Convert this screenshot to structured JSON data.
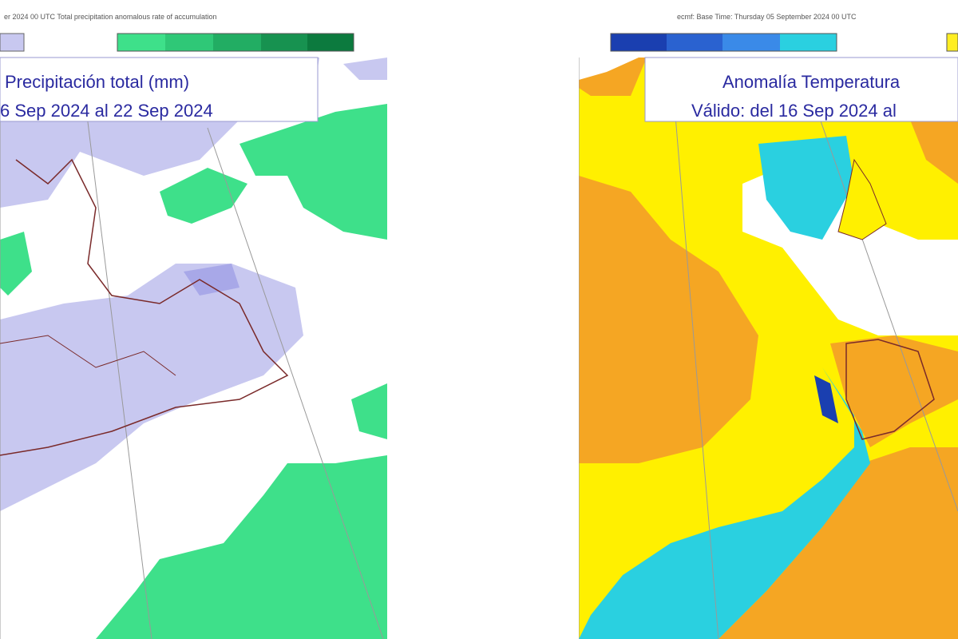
{
  "left_map": {
    "header": "er 2024 00 UTC Total precipitation anomalous rate of accumulation",
    "title": "Precipitación total (mm)",
    "subtitle": "6 Sep 2024 al 22 Sep 2024"
  },
  "right_map": {
    "header": "ecmf: Base Time: Thursday 05 September 2024 00 UTC",
    "title": "Anomalía Temperatura",
    "subtitle": "Válido: del 16 Sep 2024 al"
  }
}
